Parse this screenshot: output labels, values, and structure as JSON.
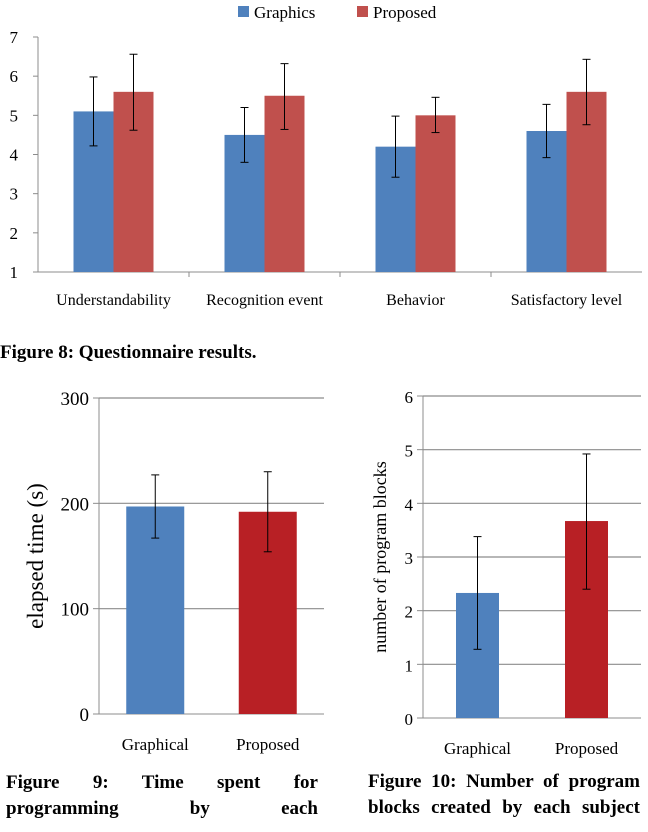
{
  "captions": {
    "fig8": "Figure 8:  Questionnaire results.",
    "fig9": "Figure 9: Time spent for programming by each",
    "fig10": "Figure 10: Number of program blocks created by each subject"
  },
  "chart_data": [
    {
      "type": "bar",
      "title": "",
      "xlabel": "",
      "ylabel": "",
      "ylim": [
        1,
        7
      ],
      "yticks": [
        1,
        2,
        3,
        4,
        5,
        6,
        7
      ],
      "grid": false,
      "legend": "top",
      "categories": [
        "Understandability",
        "Recognition event",
        "Behavior",
        "Satisfactory level"
      ],
      "series": [
        {
          "name": "Graphics",
          "color": "#4f81bd",
          "values": [
            5.1,
            4.5,
            4.2,
            4.6
          ],
          "err_low": [
            4.22,
            3.8,
            3.42,
            3.92
          ],
          "err_high": [
            5.98,
            5.2,
            4.98,
            5.28
          ]
        },
        {
          "name": "Proposed",
          "color": "#c0504d",
          "values": [
            5.6,
            5.5,
            5.0,
            5.6
          ],
          "err_low": [
            4.62,
            4.64,
            4.56,
            4.76
          ],
          "err_high": [
            6.56,
            6.32,
            5.46,
            6.43
          ]
        }
      ]
    },
    {
      "type": "bar",
      "title": "",
      "xlabel": "",
      "ylabel": "elapsed time (s)",
      "ylim": [
        0,
        300
      ],
      "yticks": [
        0,
        100,
        200,
        300
      ],
      "grid": true,
      "categories": [
        "Graphical",
        "Proposed"
      ],
      "colors": [
        "#4f81bd",
        "#b82025"
      ],
      "values": [
        197,
        192
      ],
      "err_low": [
        167,
        154
      ],
      "err_high": [
        227,
        230
      ]
    },
    {
      "type": "bar",
      "title": "",
      "xlabel": "",
      "ylabel": "number of program blocks",
      "ylim": [
        0,
        6
      ],
      "yticks": [
        0,
        1,
        2,
        3,
        4,
        5,
        6
      ],
      "grid": true,
      "categories": [
        "Graphical",
        "Proposed"
      ],
      "colors": [
        "#4f81bd",
        "#b82025"
      ],
      "values": [
        2.33,
        3.67
      ],
      "err_low": [
        1.28,
        2.4
      ],
      "err_high": [
        3.38,
        4.92
      ]
    }
  ]
}
